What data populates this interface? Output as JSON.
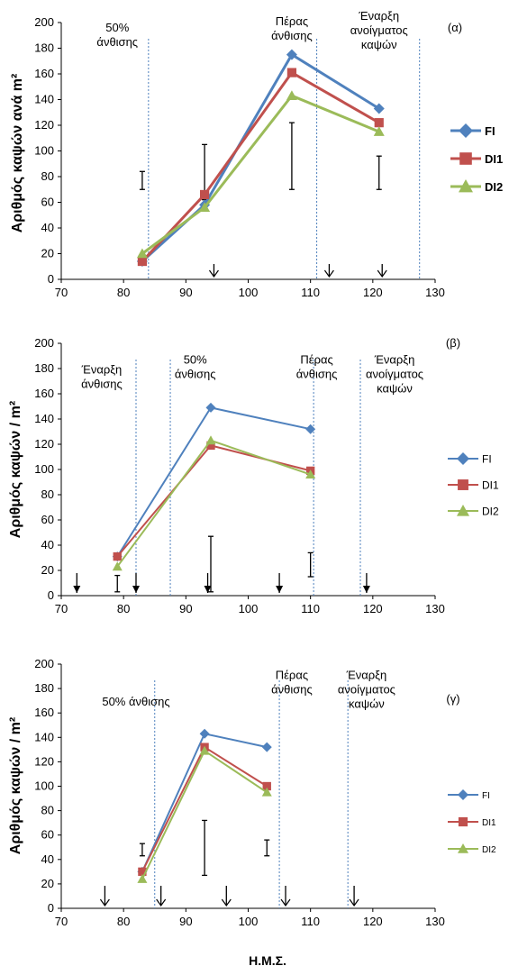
{
  "figure": {
    "xlabel_bottom": "Η.Μ.Σ."
  },
  "colors": {
    "FI": "#4f81bd",
    "DI1": "#c0504d",
    "DI2": "#9bbb59",
    "vline": "#4f81bd"
  },
  "chart_data": [
    {
      "type": "line",
      "panel_label": "(α)",
      "ylabel": "Αριθμός καψών ανά m²",
      "xlim": [
        70,
        130
      ],
      "ylim": [
        0,
        200
      ],
      "xticks": [
        "70",
        "80",
        "90",
        "100",
        "110",
        "120",
        "130"
      ],
      "yticks": [
        "0",
        "20",
        "40",
        "60",
        "80",
        "100",
        "120",
        "140",
        "160",
        "180",
        "200"
      ],
      "series": [
        {
          "name": "FI",
          "x": [
            83,
            93,
            107,
            121
          ],
          "y": [
            14,
            58,
            175,
            133
          ]
        },
        {
          "name": "DI1",
          "x": [
            83,
            93,
            107,
            121
          ],
          "y": [
            14,
            66,
            161,
            122
          ]
        },
        {
          "name": "DI2",
          "x": [
            83,
            93,
            107,
            121
          ],
          "y": [
            20,
            56,
            143,
            115
          ]
        }
      ],
      "error_bars": [
        {
          "x": 83,
          "low": 70,
          "high": 84
        },
        {
          "x": 93,
          "low": 62,
          "high": 105
        },
        {
          "x": 107,
          "low": 70,
          "high": 122
        },
        {
          "x": 121,
          "low": 70,
          "high": 96
        }
      ],
      "vlines": [
        84,
        111,
        127.5
      ],
      "arrows": [
        94.5,
        113,
        121.5
      ],
      "annotations": [
        {
          "lines": [
            "50%",
            "άνθισης"
          ],
          "x": 79,
          "y": 193
        },
        {
          "lines": [
            "Πέρας",
            "άνθισης"
          ],
          "x": 107,
          "y": 198
        },
        {
          "lines": [
            "Έναρξη",
            "ανοίγματος",
            "καψών"
          ],
          "x": 121,
          "y": 202
        }
      ]
    },
    {
      "type": "line",
      "panel_label": "(β)",
      "ylabel": "Αριθμός καψών / m²",
      "xlim": [
        70,
        130
      ],
      "ylim": [
        0,
        200
      ],
      "xticks": [
        "70",
        "80",
        "90",
        "100",
        "110",
        "120",
        "130"
      ],
      "yticks": [
        "0",
        "20",
        "40",
        "60",
        "80",
        "100",
        "120",
        "140",
        "160",
        "180",
        "200"
      ],
      "series": [
        {
          "name": "FI",
          "x": [
            79,
            94,
            110
          ],
          "y": [
            31,
            149,
            132
          ]
        },
        {
          "name": "DI1",
          "x": [
            79,
            94,
            110
          ],
          "y": [
            31,
            119,
            99
          ]
        },
        {
          "name": "DI2",
          "x": [
            79,
            94,
            110
          ],
          "y": [
            23,
            123,
            96
          ]
        }
      ],
      "error_bars": [
        {
          "x": 79,
          "low": 3,
          "high": 16
        },
        {
          "x": 94,
          "low": 3,
          "high": 47
        },
        {
          "x": 110,
          "low": 15,
          "high": 34
        }
      ],
      "vlines": [
        82,
        87.5,
        110.5,
        118
      ],
      "arrows": [
        72.5,
        82,
        93.5,
        105,
        119
      ],
      "annotations": [
        {
          "lines": [
            "Έναρξη",
            "άνθισης"
          ],
          "x": 76.5,
          "y": 176
        },
        {
          "lines": [
            "50%",
            "άνθισης"
          ],
          "x": 91.5,
          "y": 184
        },
        {
          "lines": [
            "Πέρας",
            "άνθισης"
          ],
          "x": 111,
          "y": 184
        },
        {
          "lines": [
            "Έναρξη",
            "ανοίγματος",
            "καψών"
          ],
          "x": 123.5,
          "y": 184
        }
      ]
    },
    {
      "type": "line",
      "panel_label": "(γ)",
      "ylabel": "Αριθμός καψών / m²",
      "xlim": [
        70,
        130
      ],
      "ylim": [
        0,
        200
      ],
      "xticks": [
        "70",
        "80",
        "90",
        "100",
        "110",
        "120",
        "130"
      ],
      "yticks": [
        "0",
        "20",
        "40",
        "60",
        "80",
        "100",
        "120",
        "140",
        "160",
        "180",
        "200"
      ],
      "series": [
        {
          "name": "FI",
          "x": [
            83,
            93,
            103
          ],
          "y": [
            30,
            143,
            132
          ]
        },
        {
          "name": "DI1",
          "x": [
            83,
            93,
            103
          ],
          "y": [
            30,
            132,
            100
          ]
        },
        {
          "name": "DI2",
          "x": [
            83,
            93,
            103
          ],
          "y": [
            24,
            129,
            95
          ]
        }
      ],
      "error_bars": [
        {
          "x": 83,
          "low": 43,
          "high": 53
        },
        {
          "x": 93,
          "low": 27,
          "high": 72
        },
        {
          "x": 103,
          "low": 43,
          "high": 56
        }
      ],
      "vlines": [
        85,
        105,
        116
      ],
      "arrows": [
        77,
        86,
        96.5,
        106,
        117
      ],
      "annotations": [
        {
          "lines": [
            "50% άνθισης"
          ],
          "x": 82,
          "y": 166
        },
        {
          "lines": [
            "Πέρας",
            "άνθισης"
          ],
          "x": 107,
          "y": 188
        },
        {
          "lines": [
            "Έναρξη",
            "ανοίγματος",
            "καψών"
          ],
          "x": 119,
          "y": 188
        }
      ]
    }
  ]
}
